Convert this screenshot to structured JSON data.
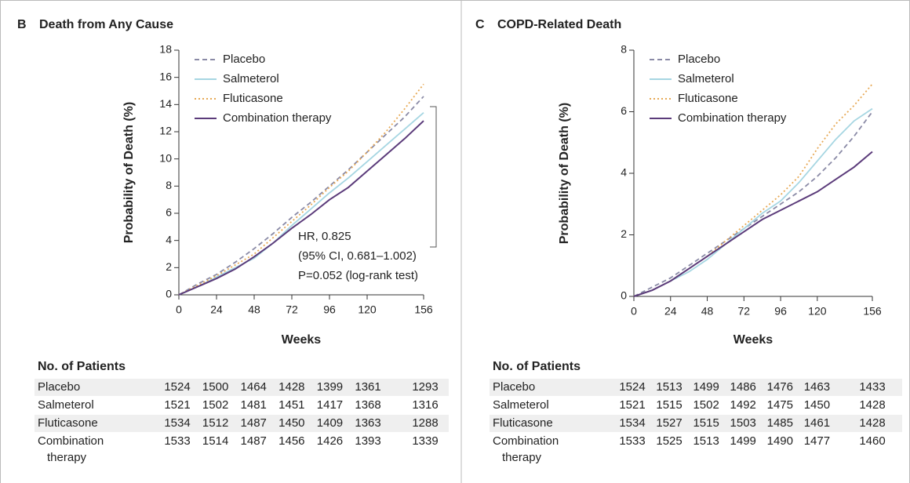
{
  "chart_data": [
    {
      "type": "line",
      "panel": "B",
      "title": "Death from Any Cause",
      "x_label": "Weeks",
      "y_label": "Probability of Death (%)",
      "x": [
        0,
        12,
        24,
        36,
        48,
        60,
        72,
        84,
        96,
        108,
        120,
        132,
        144,
        156
      ],
      "series": [
        {
          "name": "Placebo",
          "color": "#8a8aa6",
          "style": "dashed",
          "values": [
            0,
            0.8,
            1.5,
            2.4,
            3.4,
            4.5,
            5.7,
            6.8,
            8.0,
            9.2,
            10.5,
            11.8,
            13.1,
            14.6
          ]
        },
        {
          "name": "Salmeterol",
          "color": "#a6d6e2",
          "style": "solid",
          "values": [
            0,
            0.6,
            1.3,
            2.0,
            2.7,
            3.8,
            5.1,
            6.3,
            7.5,
            8.6,
            9.8,
            11.0,
            12.2,
            13.4
          ]
        },
        {
          "name": "Fluticasone",
          "color": "#e7a955",
          "style": "dotted",
          "values": [
            0,
            0.7,
            1.4,
            2.2,
            3.0,
            4.2,
            5.4,
            6.6,
            7.9,
            9.1,
            10.5,
            12.0,
            13.7,
            15.5
          ]
        },
        {
          "name": "Combination therapy",
          "color": "#5b3b7a",
          "style": "solid",
          "values": [
            0,
            0.6,
            1.2,
            1.9,
            2.8,
            3.8,
            4.9,
            5.9,
            7.0,
            7.9,
            9.1,
            10.3,
            11.5,
            12.8
          ]
        }
      ],
      "xlim": [
        0,
        156
      ],
      "xticks": [
        0,
        24,
        48,
        72,
        96,
        120,
        156
      ],
      "ylim": [
        0,
        18
      ],
      "yticks": [
        0,
        2,
        4,
        6,
        8,
        10,
        12,
        14,
        16,
        18
      ],
      "legend": "upper left",
      "annotations": [
        "HR, 0.825",
        "(95% CI, 0.681–1.002)",
        "P=0.052 (log-rank test)"
      ],
      "risk_table": {
        "title": "No. of Patients",
        "rows": [
          {
            "label": "Placebo",
            "values": [
              1524,
              1500,
              1464,
              1428,
              1399,
              1361,
              1293
            ]
          },
          {
            "label": "Salmeterol",
            "values": [
              1521,
              1502,
              1481,
              1451,
              1417,
              1368,
              1316
            ]
          },
          {
            "label": "Fluticasone",
            "values": [
              1534,
              1512,
              1487,
              1450,
              1409,
              1363,
              1288
            ]
          },
          {
            "label": "Combination therapy",
            "values": [
              1533,
              1514,
              1487,
              1456,
              1426,
              1393,
              1339
            ]
          }
        ]
      }
    },
    {
      "type": "line",
      "panel": "C",
      "title": "COPD-Related Death",
      "x_label": "Weeks",
      "y_label": "Probability of Death (%)",
      "x": [
        0,
        12,
        24,
        36,
        48,
        60,
        72,
        84,
        96,
        108,
        120,
        132,
        144,
        156
      ],
      "series": [
        {
          "name": "Placebo",
          "color": "#8a8aa6",
          "style": "dashed",
          "values": [
            0,
            0.3,
            0.6,
            1.0,
            1.4,
            1.8,
            2.2,
            2.6,
            3.0,
            3.4,
            3.9,
            4.5,
            5.2,
            6.0
          ]
        },
        {
          "name": "Salmeterol",
          "color": "#a6d6e2",
          "style": "solid",
          "values": [
            0,
            0.2,
            0.5,
            0.8,
            1.2,
            1.7,
            2.2,
            2.7,
            3.1,
            3.7,
            4.4,
            5.1,
            5.7,
            6.1
          ]
        },
        {
          "name": "Fluticasone",
          "color": "#e7a955",
          "style": "dotted",
          "values": [
            0,
            0.2,
            0.5,
            0.9,
            1.3,
            1.8,
            2.3,
            2.8,
            3.3,
            3.9,
            4.8,
            5.6,
            6.2,
            6.9
          ]
        },
        {
          "name": "Combination therapy",
          "color": "#5b3b7a",
          "style": "solid",
          "values": [
            0,
            0.2,
            0.5,
            0.9,
            1.3,
            1.7,
            2.1,
            2.5,
            2.8,
            3.1,
            3.4,
            3.8,
            4.2,
            4.7
          ]
        }
      ],
      "xlim": [
        0,
        156
      ],
      "xticks": [
        0,
        24,
        48,
        72,
        96,
        120,
        156
      ],
      "ylim": [
        0,
        8
      ],
      "yticks": [
        0,
        2,
        4,
        6,
        8
      ],
      "legend": "upper left",
      "risk_table": {
        "title": "No. of Patients",
        "rows": [
          {
            "label": "Placebo",
            "values": [
              1524,
              1513,
              1499,
              1486,
              1476,
              1463,
              1433
            ]
          },
          {
            "label": "Salmeterol",
            "values": [
              1521,
              1515,
              1502,
              1492,
              1475,
              1450,
              1428
            ]
          },
          {
            "label": "Fluticasone",
            "values": [
              1534,
              1527,
              1515,
              1503,
              1485,
              1461,
              1428
            ]
          },
          {
            "label": "Combination therapy",
            "values": [
              1533,
              1525,
              1513,
              1499,
              1490,
              1477,
              1460
            ]
          }
        ]
      }
    }
  ]
}
